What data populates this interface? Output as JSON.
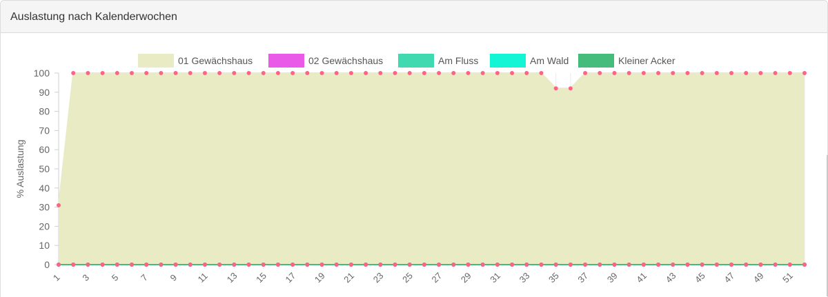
{
  "panel": {
    "title": "Auslastung nach Kalenderwochen"
  },
  "chart_data": {
    "type": "line",
    "title": "",
    "xlabel": "",
    "ylabel": "% Auslastung",
    "ylim": [
      0,
      100
    ],
    "yticks": [
      0,
      10,
      20,
      30,
      40,
      50,
      60,
      70,
      80,
      90,
      100
    ],
    "x": [
      1,
      2,
      3,
      4,
      5,
      6,
      7,
      8,
      9,
      10,
      11,
      12,
      13,
      14,
      15,
      16,
      17,
      18,
      19,
      20,
      21,
      22,
      23,
      24,
      25,
      26,
      27,
      28,
      29,
      30,
      31,
      32,
      33,
      34,
      35,
      36,
      37,
      38,
      39,
      40,
      41,
      42,
      43,
      44,
      45,
      46,
      47,
      48,
      49,
      50,
      51,
      52
    ],
    "xtick_labels": [
      1,
      3,
      5,
      7,
      9,
      11,
      13,
      15,
      17,
      19,
      21,
      23,
      25,
      27,
      29,
      31,
      33,
      35,
      37,
      39,
      41,
      43,
      45,
      47,
      49,
      51
    ],
    "legend_position": "top",
    "grid": "vertical",
    "series": [
      {
        "name": "01 Gewächshaus",
        "color": "#e8ebc4",
        "line_color": "#e8ebc4",
        "point_color": "#ff6384",
        "fill": true,
        "values": [
          31,
          100,
          100,
          100,
          100,
          100,
          100,
          100,
          100,
          100,
          100,
          100,
          100,
          100,
          100,
          100,
          100,
          100,
          100,
          100,
          100,
          100,
          100,
          100,
          100,
          100,
          100,
          100,
          100,
          100,
          100,
          100,
          100,
          100,
          92,
          92,
          100,
          100,
          100,
          100,
          100,
          100,
          100,
          100,
          100,
          100,
          100,
          100,
          100,
          100,
          100,
          100
        ]
      },
      {
        "name": "02 Gewächshaus",
        "color": "#e95ae9",
        "line_color": "#e95ae9",
        "point_color": "#ff6384",
        "fill": false,
        "values": [
          0,
          0,
          0,
          0,
          0,
          0,
          0,
          0,
          0,
          0,
          0,
          0,
          0,
          0,
          0,
          0,
          0,
          0,
          0,
          0,
          0,
          0,
          0,
          0,
          0,
          0,
          0,
          0,
          0,
          0,
          0,
          0,
          0,
          0,
          0,
          0,
          0,
          0,
          0,
          0,
          0,
          0,
          0,
          0,
          0,
          0,
          0,
          0,
          0,
          0,
          0,
          0
        ]
      },
      {
        "name": "Am Fluss",
        "color": "#40d9b0",
        "line_color": "#40d9b0",
        "point_color": "#36a2eb",
        "fill": false,
        "values": [
          0,
          0,
          0,
          0,
          0,
          0,
          0,
          0,
          0,
          0,
          0,
          0,
          0,
          0,
          0,
          0,
          0,
          0,
          0,
          0,
          0,
          0,
          0,
          0,
          0,
          0,
          0,
          0,
          0,
          0,
          0,
          0,
          0,
          0,
          0,
          0,
          0,
          0,
          0,
          0,
          0,
          0,
          0,
          0,
          0,
          0,
          0,
          0,
          0,
          0,
          0,
          0
        ]
      },
      {
        "name": "Am Wald",
        "color": "#14f5d6",
        "line_color": "#14f5d6",
        "point_color": "#36a2eb",
        "fill": false,
        "values": [
          0,
          0,
          0,
          0,
          0,
          0,
          0,
          0,
          0,
          0,
          0,
          0,
          0,
          0,
          0,
          0,
          0,
          0,
          0,
          0,
          0,
          0,
          0,
          0,
          0,
          0,
          0,
          0,
          0,
          0,
          0,
          0,
          0,
          0,
          0,
          0,
          0,
          0,
          0,
          0,
          0,
          0,
          0,
          0,
          0,
          0,
          0,
          0,
          0,
          0,
          0,
          0
        ]
      },
      {
        "name": "Kleiner Acker",
        "color": "#45bc7c",
        "line_color": "#45bc7c",
        "point_color": "#36a2eb",
        "fill": false,
        "values": [
          0,
          0,
          0,
          0,
          0,
          0,
          0,
          0,
          0,
          0,
          0,
          0,
          0,
          0,
          0,
          0,
          0,
          0,
          0,
          0,
          0,
          0,
          0,
          0,
          0,
          0,
          0,
          0,
          0,
          0,
          0,
          0,
          0,
          0,
          0,
          0,
          0,
          0,
          0,
          0,
          0,
          0,
          0,
          0,
          0,
          0,
          0,
          0,
          0,
          0,
          0,
          0
        ]
      }
    ]
  }
}
